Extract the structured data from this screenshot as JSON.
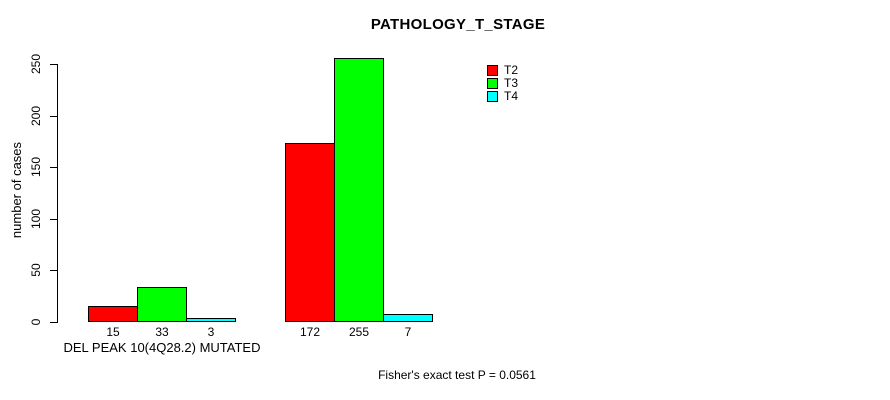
{
  "chart_data": {
    "type": "bar",
    "title": "PATHOLOGY_T_STAGE",
    "ylabel": "number of cases",
    "xlabel": "DEL PEAK 10(4Q28.2) MUTATED",
    "categories": [
      "DEL PEAK 10(4Q28.2) MUTATED",
      ""
    ],
    "series": [
      {
        "name": "T2",
        "color": "#ff0000",
        "values": [
          15,
          172
        ]
      },
      {
        "name": "T3",
        "color": "#00ff00",
        "values": [
          33,
          255
        ]
      },
      {
        "name": "T4",
        "color": "#00ffff",
        "values": [
          3,
          7
        ]
      }
    ],
    "bar_value_labels": [
      [
        "15",
        "33",
        "3"
      ],
      [
        "172",
        "255",
        "7"
      ]
    ],
    "yticks": [
      0,
      50,
      100,
      150,
      200,
      250
    ],
    "ylim": [
      0,
      250
    ],
    "grid": false,
    "legend": {
      "position": "top-right",
      "entries": [
        "T2",
        "T3",
        "T4"
      ]
    },
    "annotation": "Fisher's exact test P = 0.0561",
    "axis_color": "#000000",
    "text_color": "#000000",
    "background": "#ffffff"
  }
}
